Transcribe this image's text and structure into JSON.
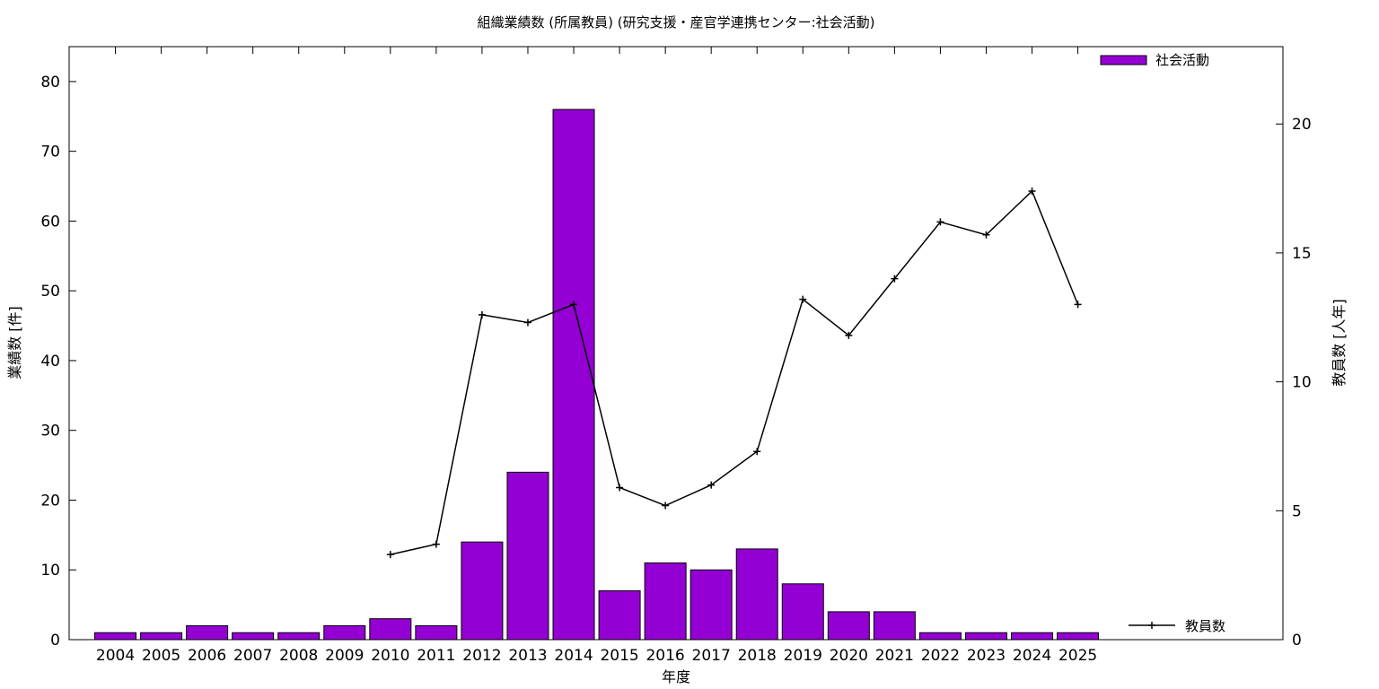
{
  "chart_data": {
    "type": "bar",
    "title": "組織業績数 (所属教員) (研究支援・産官学連携センター:社会活動)",
    "xlabel": "年度",
    "ylabel": "業績数 [件]",
    "y2label": "教員数 [人年]",
    "categories": [
      "2004",
      "2005",
      "2006",
      "2007",
      "2008",
      "2009",
      "2010",
      "2011",
      "2012",
      "2013",
      "2014",
      "2015",
      "2016",
      "2017",
      "2018",
      "2019",
      "2020",
      "2021",
      "2022",
      "2023",
      "2024",
      "2025"
    ],
    "ylim": [
      0,
      85
    ],
    "y2lim": [
      0,
      23
    ],
    "yticks": [
      0,
      10,
      20,
      30,
      40,
      50,
      60,
      70,
      80
    ],
    "y2ticks": [
      0,
      5,
      10,
      15,
      20
    ],
    "grid": false,
    "series": [
      {
        "name": "社会活動",
        "kind": "bar",
        "axis": "left",
        "color": "#9400d3",
        "values": [
          1,
          1,
          2,
          1,
          1,
          2,
          3,
          2,
          14,
          24,
          76,
          7,
          11,
          10,
          13,
          8,
          4,
          4,
          1,
          1,
          1,
          1
        ]
      },
      {
        "name": "教員数",
        "kind": "line",
        "axis": "right",
        "color": "#000000",
        "values": [
          null,
          null,
          null,
          null,
          null,
          null,
          3.3,
          3.7,
          12.6,
          12.3,
          13.0,
          5.9,
          5.2,
          6.0,
          7.3,
          13.2,
          11.8,
          14.0,
          16.2,
          15.7,
          17.4,
          13.0
        ]
      }
    ],
    "legend": [
      {
        "label": "社会活動",
        "position": "top-right"
      },
      {
        "label": "教員数",
        "position": "bottom-right"
      }
    ]
  }
}
